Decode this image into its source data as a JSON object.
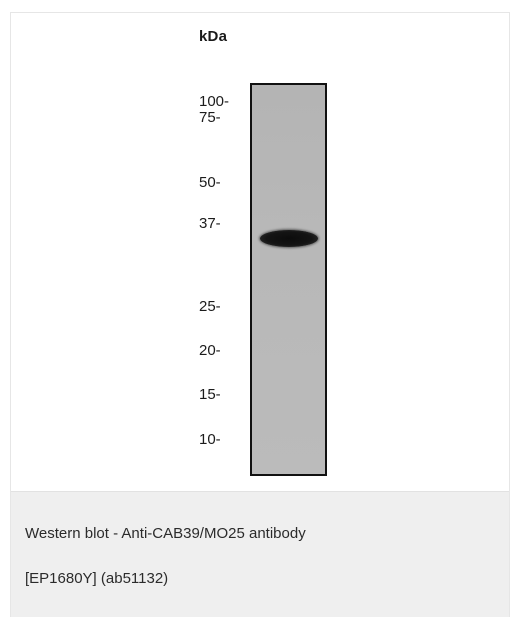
{
  "figure": {
    "unit_header": "kDa",
    "markers": [
      {
        "label": "100-"
      },
      {
        "label": "75-"
      },
      {
        "label": "50-"
      },
      {
        "label": "37-"
      },
      {
        "label": "25-"
      },
      {
        "label": "20-"
      },
      {
        "label": "15-"
      },
      {
        "label": "10-"
      }
    ]
  },
  "caption": {
    "line1": "Western blot - Anti-CAB39/MO25 antibody",
    "line2": "[EP1680Y] (ab51132)"
  },
  "colors": {
    "caption_background": "#efefef",
    "lane_background": "#b8b8b8",
    "band": "#111111"
  }
}
